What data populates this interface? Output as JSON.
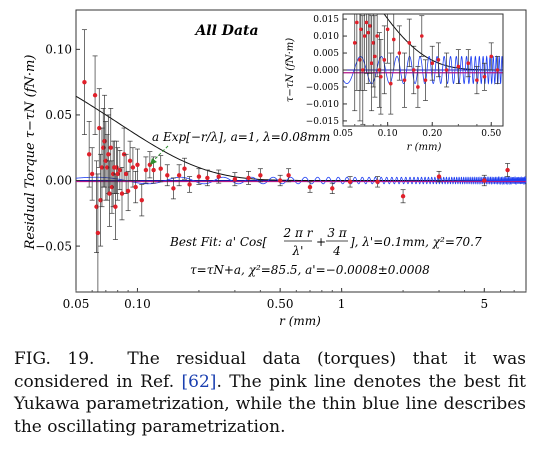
{
  "figure": {
    "label": "FIG. 19.",
    "caption": "The residual data (torques) that it was considered in Ref. [62]. The pink line denotes the best fit Yukawa parametrization, while the thin blue line describes the oscillating parametrization.",
    "ref_color": "#1a3fb0"
  },
  "chart_data": [
    {
      "type": "scatter",
      "panel": "main",
      "title": "All Data",
      "xlabel": "r (mm)",
      "ylabel": "Residual Torque τ−τN (fN·m)",
      "xscale": "log",
      "xlim": [
        0.05,
        8
      ],
      "ylim": [
        -0.085,
        0.13
      ],
      "xticks": [
        0.05,
        0.1,
        0.5,
        1,
        5
      ],
      "xtick_labels": [
        "0.05",
        "0.10",
        "0.50",
        "1",
        "5"
      ],
      "yticks": [
        -0.05,
        0.0,
        0.05,
        0.1
      ],
      "ytick_labels": [
        "−0.05",
        "0.00",
        "0.05",
        "0.10"
      ],
      "annotations": {
        "yukawa": "a Exp[−r/λ], a=1, λ=0.08mm",
        "best_fit": "Best Fit: a' Cos[2πr/λ' + 3π/4], λ'=0.1mm, χ²=70.7",
        "bf_prefix": "Best Fit: a' Cos[",
        "bf_num1": "2 π r",
        "bf_den1": "λ'",
        "bf_num2": "3 π",
        "bf_den2": "4",
        "bf_suffix": "],  λ'=0.1mm,   χ²=70.7",
        "null_fit": "τ=τN+a, χ²=85.5, a'=−0.0008±0.0008"
      },
      "series": [
        {
          "name": "torque residuals",
          "x": [
            0.055,
            0.058,
            0.06,
            0.062,
            0.063,
            0.064,
            0.065,
            0.066,
            0.067,
            0.068,
            0.069,
            0.07,
            0.071,
            0.072,
            0.073,
            0.074,
            0.075,
            0.076,
            0.077,
            0.078,
            0.079,
            0.08,
            0.082,
            0.084,
            0.086,
            0.088,
            0.09,
            0.092,
            0.095,
            0.098,
            0.1,
            0.105,
            0.11,
            0.115,
            0.12,
            0.13,
            0.14,
            0.15,
            0.16,
            0.17,
            0.18,
            0.2,
            0.22,
            0.25,
            0.3,
            0.35,
            0.4,
            0.5,
            0.55,
            0.7,
            0.9,
            1.1,
            1.5,
            2.0,
            3.0,
            5.0,
            6.5
          ],
          "y": [
            0.075,
            0.02,
            0.005,
            0.065,
            -0.02,
            -0.04,
            0.04,
            -0.015,
            0.01,
            0.025,
            0.03,
            0.015,
            0.01,
            0.02,
            -0.01,
            0.025,
            -0.005,
            0.005,
            0.01,
            -0.02,
            0.01,
            0.005,
            0.008,
            -0.01,
            0.02,
            0.005,
            -0.008,
            0.015,
            0.01,
            -0.005,
            0.012,
            -0.015,
            0.008,
            0.012,
            0.008,
            0.009,
            0.004,
            -0.006,
            0.004,
            0.009,
            -0.003,
            0.003,
            0.002,
            0.003,
            0.001,
            0.002,
            0.004,
            0.0,
            0.004,
            -0.005,
            -0.006,
            -0.001,
            -0.001,
            -0.012,
            0.003,
            0.0,
            0.008
          ],
          "err": [
            0.04,
            0.025,
            0.02,
            0.03,
            0.035,
            0.045,
            0.03,
            0.035,
            0.03,
            0.03,
            0.035,
            0.03,
            0.025,
            0.03,
            0.025,
            0.03,
            0.02,
            0.025,
            0.02,
            0.025,
            0.02,
            0.02,
            0.015,
            0.02,
            0.02,
            0.015,
            0.015,
            0.015,
            0.015,
            0.012,
            0.012,
            0.012,
            0.01,
            0.01,
            0.01,
            0.01,
            0.008,
            0.008,
            0.008,
            0.008,
            0.006,
            0.006,
            0.006,
            0.005,
            0.005,
            0.005,
            0.005,
            0.004,
            0.005,
            0.004,
            0.004,
            0.004,
            0.004,
            0.005,
            0.004,
            0.004,
            0.005
          ]
        },
        {
          "name": "Yukawa a·exp(−r/λ)",
          "color": "#111111",
          "a": 1,
          "lambda_mm": 0.08
        },
        {
          "name": "oscillating best fit",
          "color": "#1f3ff2",
          "lambda_prime_mm": 0.1,
          "phase": "3π/4"
        },
        {
          "name": "constant fit",
          "color": "#b01888",
          "value": -0.0008
        }
      ]
    },
    {
      "type": "scatter",
      "panel": "inset",
      "xlabel": "r (mm)",
      "ylabel": "τ−τN (fN·m)",
      "xscale": "log",
      "xlim": [
        0.05,
        0.6
      ],
      "ylim": [
        -0.0165,
        0.0165
      ],
      "xticks": [
        0.05,
        0.1,
        0.2,
        0.5
      ],
      "xtick_labels": [
        "0.05",
        "0.10",
        "0.20",
        "0.50"
      ],
      "yticks": [
        -0.015,
        -0.01,
        -0.005,
        0.0,
        0.005,
        0.01,
        0.015
      ],
      "ytick_labels": [
        "−0.015",
        "−0.010",
        "−0.005",
        "0.000",
        "0.005",
        "0.010",
        "0.015"
      ],
      "series": [
        {
          "name": "torque residuals",
          "x": [
            0.06,
            0.062,
            0.065,
            0.066,
            0.068,
            0.07,
            0.072,
            0.074,
            0.076,
            0.078,
            0.08,
            0.082,
            0.085,
            0.088,
            0.09,
            0.095,
            0.1,
            0.105,
            0.11,
            0.12,
            0.13,
            0.14,
            0.15,
            0.16,
            0.17,
            0.18,
            0.2,
            0.22,
            0.25,
            0.3,
            0.35,
            0.4,
            0.45,
            0.5,
            0.55
          ],
          "y": [
            0.008,
            0.014,
            0.003,
            0.012,
            0.0,
            0.01,
            0.014,
            0.011,
            0.013,
            0.002,
            0.008,
            0.004,
            0.01,
            0.0,
            -0.002,
            0.003,
            0.012,
            -0.004,
            0.009,
            0.005,
            -0.003,
            0.008,
            0.0,
            -0.005,
            0.01,
            -0.003,
            0.002,
            0.003,
            0.0,
            0.001,
            0.002,
            -0.003,
            -0.002,
            0.004,
            0.0
          ],
          "err": [
            0.02,
            0.02,
            0.018,
            0.018,
            0.016,
            0.016,
            0.015,
            0.015,
            0.014,
            0.014,
            0.013,
            0.012,
            0.012,
            0.011,
            0.011,
            0.01,
            0.01,
            0.009,
            0.009,
            0.008,
            0.008,
            0.007,
            0.007,
            0.006,
            0.006,
            0.006,
            0.005,
            0.005,
            0.005,
            0.005,
            0.004,
            0.004,
            0.004,
            0.004,
            0.004
          ]
        },
        {
          "name": "Yukawa a·exp(−r/λ)",
          "color": "#111111"
        },
        {
          "name": "oscillating best fit",
          "color": "#1f3ff2"
        },
        {
          "name": "constant fit",
          "color": "#b01888",
          "value": -0.0008
        }
      ]
    }
  ]
}
